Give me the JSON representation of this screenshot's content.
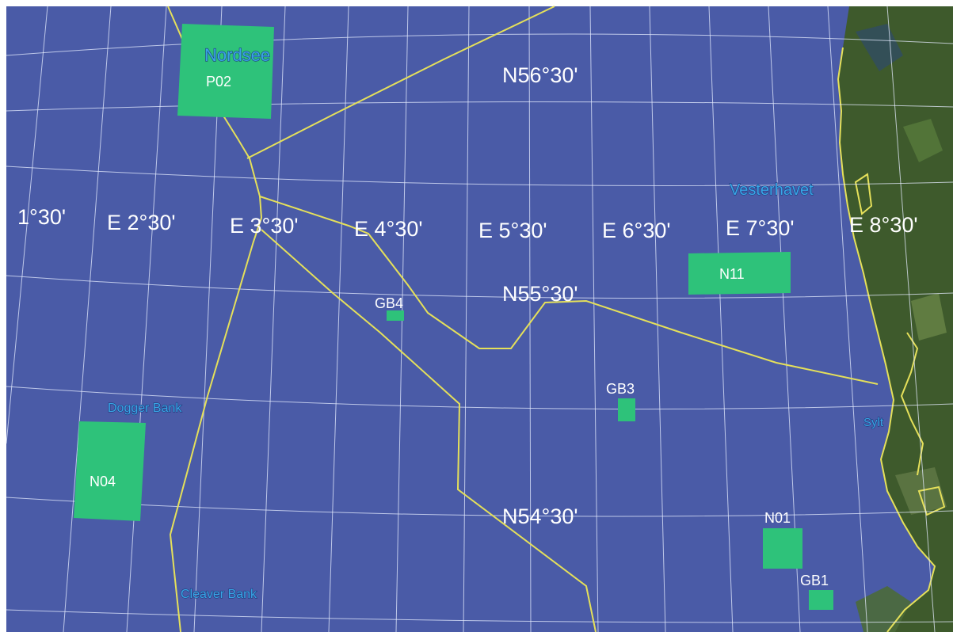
{
  "map": {
    "colors": {
      "sea": "#4a5ba7",
      "land": "#3e5a2c",
      "grid": "#e6ecff",
      "borders": "#e5e05a",
      "areas": "#2ec27a",
      "label_white": "#ffffff",
      "label_blue": "#39a5e6"
    },
    "longitude_labels": [
      "1°30'",
      "E 2°30'",
      "E 3°30'",
      "E 4°30'",
      "E 5°30'",
      "E 6°30'",
      "E 7°30'",
      "E 8°30'"
    ],
    "latitude_labels": [
      "N56°30'",
      "N55°30'",
      "N54°30'"
    ],
    "place_labels": [
      "Nordsee",
      "Vesterhavet",
      "Dogger Bank",
      "Cleaver Bank",
      "Sylt"
    ],
    "areas": [
      "P02",
      "N11",
      "GB4",
      "GB3",
      "N04",
      "N01",
      "GB1"
    ]
  }
}
